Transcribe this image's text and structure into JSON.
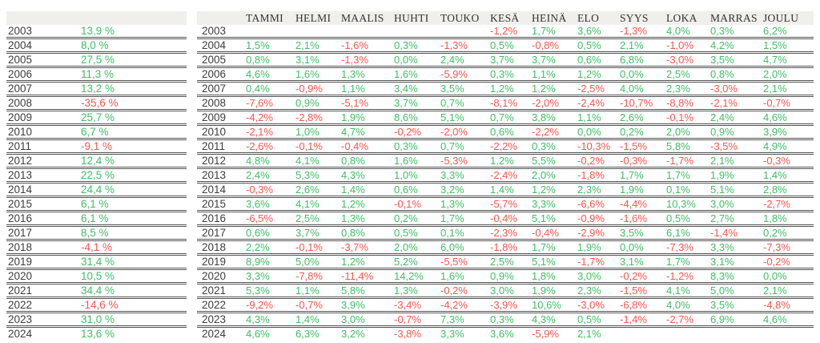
{
  "colors": {
    "positive": "#3DBE63",
    "negative": "#F4564E",
    "header_band": "#F1EFEC",
    "row_line": "#555555",
    "year_text": "#3D3D3D"
  },
  "chart_data": {
    "type": "table",
    "columns": [
      "TAMMI",
      "HELMI",
      "MAALIS",
      "HUHTI",
      "TOUKO",
      "KESÄ",
      "HEINÄ",
      "ELO",
      "SYYS",
      "LOKA",
      "MARRAS",
      "JOULU"
    ],
    "rows": [
      {
        "year": "2003",
        "annual": "13,9 %",
        "months": [
          "",
          "",
          "",
          "",
          "",
          "-1,2%",
          "1,7%",
          "3,6%",
          "-1,3%",
          "4,0%",
          "0,3%",
          "6,2%"
        ]
      },
      {
        "year": "2004",
        "annual": "8,0 %",
        "months": [
          "1,5%",
          "2,1%",
          "-1,6%",
          "0,3%",
          "-1,3%",
          "0,5%",
          "-0,8%",
          "0,5%",
          "2,1%",
          "-1,0%",
          "4,2%",
          "1,5%"
        ]
      },
      {
        "year": "2005",
        "annual": "27,5 %",
        "months": [
          "0,8%",
          "3,1%",
          "-1,3%",
          "0,0%",
          "2,4%",
          "3,7%",
          "3,7%",
          "0,6%",
          "6,8%",
          "-3,0%",
          "3,5%",
          "4,7%"
        ]
      },
      {
        "year": "2006",
        "annual": "11,3 %",
        "months": [
          "4,6%",
          "1,6%",
          "1,3%",
          "1,6%",
          "-5,9%",
          "0,3%",
          "1,1%",
          "1,2%",
          "0,0%",
          "2,5%",
          "0,8%",
          "2,0%"
        ]
      },
      {
        "year": "2007",
        "annual": "13,2 %",
        "months": [
          "0,4%",
          "-0,9%",
          "1,1%",
          "3,4%",
          "3,5%",
          "1,2%",
          "1,2%",
          "-2,5%",
          "4,0%",
          "2,3%",
          "-3,0%",
          "2,1%"
        ]
      },
      {
        "year": "2008",
        "annual": "-35,6 %",
        "months": [
          "-7,6%",
          "0,9%",
          "-5,1%",
          "3,7%",
          "0,7%",
          "-8,1%",
          "-2,0%",
          "-2,4%",
          "-10,7%",
          "-8,8%",
          "-2,1%",
          "-0,7%"
        ]
      },
      {
        "year": "2009",
        "annual": "25,7 %",
        "months": [
          "-4,2%",
          "-2,8%",
          "1,9%",
          "8,6%",
          "5,1%",
          "0,7%",
          "3,8%",
          "1,1%",
          "2,6%",
          "-0,1%",
          "2,4%",
          "4,6%"
        ]
      },
      {
        "year": "2010",
        "annual": "6,7 %",
        "months": [
          "-2,1%",
          "1,0%",
          "4,7%",
          "-0,2%",
          "-2,0%",
          "0,6%",
          "-2,2%",
          "0,0%",
          "0,2%",
          "2,0%",
          "0,9%",
          "3,9%"
        ]
      },
      {
        "year": "2011",
        "annual": "-9,1 %",
        "months": [
          "-2,6%",
          "-0,1%",
          "-0,4%",
          "0,3%",
          "0,7%",
          "-2,2%",
          "0,3%",
          "-10,3%",
          "-1,5%",
          "5,8%",
          "-3,5%",
          "4,9%"
        ]
      },
      {
        "year": "2012",
        "annual": "12,4 %",
        "months": [
          "4,8%",
          "4,1%",
          "0,8%",
          "1,6%",
          "-5,3%",
          "1,2%",
          "5,5%",
          "-0,2%",
          "-0,3%",
          "-1,7%",
          "2,1%",
          "-0,3%"
        ]
      },
      {
        "year": "2013",
        "annual": "22,5 %",
        "months": [
          "2,4%",
          "5,3%",
          "4,3%",
          "1,0%",
          "3,3%",
          "-2,4%",
          "2,0%",
          "-1,8%",
          "1,7%",
          "1,7%",
          "1,9%",
          "1,4%"
        ]
      },
      {
        "year": "2014",
        "annual": "24,4 %",
        "months": [
          "-0,3%",
          "2,6%",
          "1,4%",
          "0,6%",
          "3,2%",
          "1,4%",
          "1,2%",
          "2,3%",
          "1,9%",
          "0,1%",
          "5,1%",
          "2,8%"
        ]
      },
      {
        "year": "2015",
        "annual": "6,1 %",
        "months": [
          "3,6%",
          "4,1%",
          "1,2%",
          "-0,1%",
          "1,3%",
          "-5,7%",
          "3,3%",
          "-6,6%",
          "-4,4%",
          "10,3%",
          "3,0%",
          "-2,7%"
        ]
      },
      {
        "year": "2016",
        "annual": "6,1 %",
        "months": [
          "-6,5%",
          "2,5%",
          "1,3%",
          "0,2%",
          "1,7%",
          "-0,4%",
          "5,1%",
          "-0,9%",
          "-1,6%",
          "0,5%",
          "2,7%",
          "1,8%"
        ]
      },
      {
        "year": "2017",
        "annual": "8,5 %",
        "months": [
          "0,6%",
          "3,7%",
          "0,8%",
          "0,5%",
          "0,1%",
          "-2,3%",
          "-0,4%",
          "-2,9%",
          "3,5%",
          "6,1%",
          "-1,4%",
          "0,2%"
        ]
      },
      {
        "year": "2018",
        "annual": "-4,1 %",
        "months": [
          "2,2%",
          "-0,1%",
          "-3,7%",
          "2,0%",
          "6,0%",
          "-1,8%",
          "1,7%",
          "1,9%",
          "0,0%",
          "-7,3%",
          "3,3%",
          "-7,3%"
        ]
      },
      {
        "year": "2019",
        "annual": "31,4 %",
        "months": [
          "8,9%",
          "5,0%",
          "1,2%",
          "5,2%",
          "-5,5%",
          "2,5%",
          "5,1%",
          "-1,7%",
          "3,1%",
          "1,7%",
          "3,1%",
          "-0,2%"
        ]
      },
      {
        "year": "2020",
        "annual": "10,5 %",
        "months": [
          "3,3%",
          "-7,8%",
          "-11,4%",
          "14,2%",
          "1,6%",
          "0,9%",
          "1,8%",
          "3,0%",
          "-0,2%",
          "-1,2%",
          "8,3%",
          "0,0%"
        ]
      },
      {
        "year": "2021",
        "annual": "34,4 %",
        "months": [
          "5,3%",
          "1,1%",
          "5,8%",
          "1,3%",
          "-0,2%",
          "3,0%",
          "1,9%",
          "2,3%",
          "-1,5%",
          "4,1%",
          "5,0%",
          "2,1%"
        ]
      },
      {
        "year": "2022",
        "annual": "-14,6 %",
        "months": [
          "-9,2%",
          "-0,7%",
          "3,9%",
          "-3,4%",
          "-4,2%",
          "-3,9%",
          "10,6%",
          "-3,0%",
          "-6,8%",
          "4,0%",
          "3,5%",
          "-4,8%"
        ]
      },
      {
        "year": "2023",
        "annual": "31,0 %",
        "months": [
          "4,3%",
          "1,4%",
          "3,0%",
          "-0,7%",
          "7,3%",
          "0,3%",
          "4,3%",
          "0,5%",
          "-1,4%",
          "-2,7%",
          "6,9%",
          "4,6%"
        ]
      },
      {
        "year": "2024",
        "annual": "13,6 %",
        "months": [
          "4,6%",
          "6,3%",
          "3,2%",
          "-3,8%",
          "3,3%",
          "3,6%",
          "-5,9%",
          "2,1%",
          "",
          "",
          "",
          ""
        ]
      }
    ]
  }
}
